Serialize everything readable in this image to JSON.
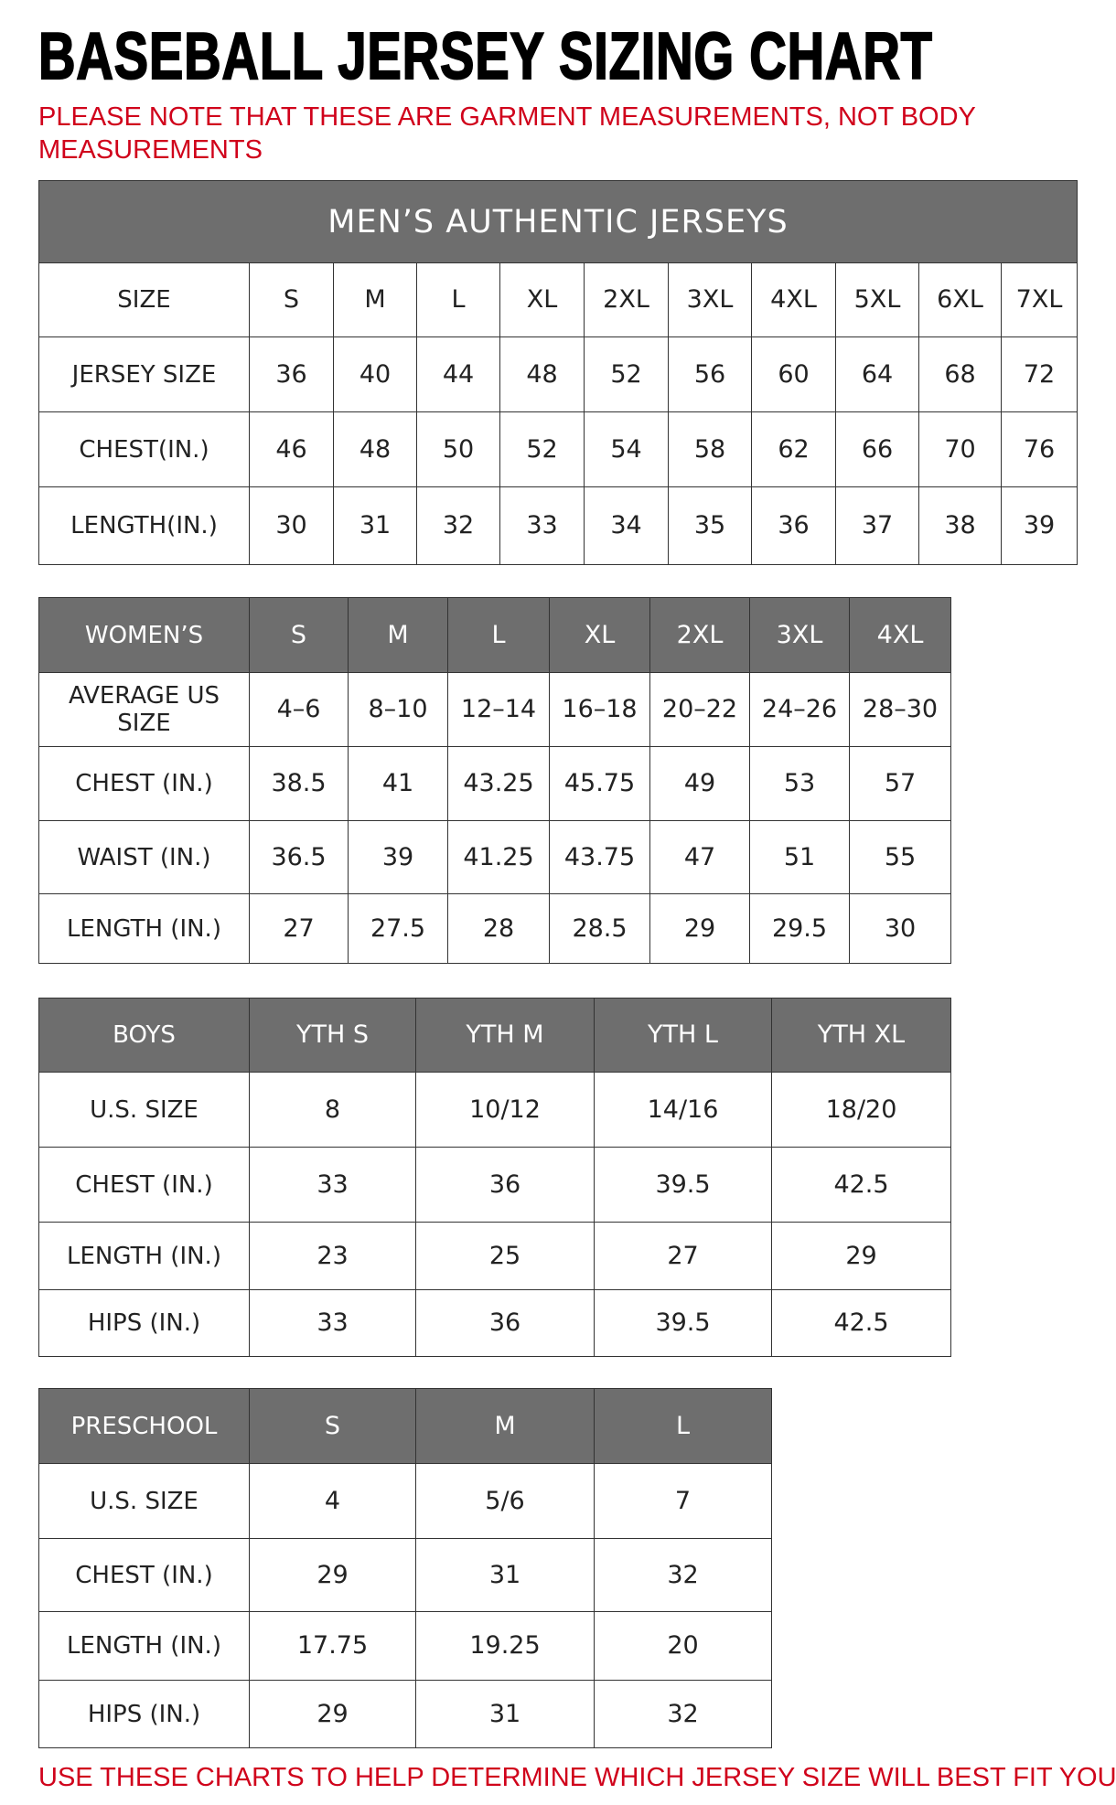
{
  "title": "BASEBALL JERSEY SIZING CHART",
  "note": "PLEASE NOTE THAT THESE ARE GARMENT MEASUREMENTS, NOT BODY MEASUREMENTS",
  "footer_note": "USE THESE CHARTS TO HELP DETERMINE WHICH JERSEY SIZE WILL BEST FIT YOU.",
  "colors": {
    "header_gray": "#6e6e6e",
    "note_red": "#d0021b"
  },
  "tables": [
    {
      "id": "mens",
      "caption": "MEN’S AUTHENTIC JERSEYS",
      "header_gray": false,
      "rows": [
        [
          "SIZE",
          "S",
          "M",
          "L",
          "XL",
          "2XL",
          "3XL",
          "4XL",
          "5XL",
          "6XL",
          "7XL"
        ],
        [
          "JERSEY SIZE",
          "36",
          "40",
          "44",
          "48",
          "52",
          "56",
          "60",
          "64",
          "68",
          "72"
        ],
        [
          "CHEST(IN.)",
          "46",
          "48",
          "50",
          "52",
          "54",
          "58",
          "62",
          "66",
          "70",
          "76"
        ],
        [
          "LENGTH(IN.)",
          "30",
          "31",
          "32",
          "33",
          "34",
          "35",
          "36",
          "37",
          "38",
          "39"
        ]
      ]
    },
    {
      "id": "womens",
      "header_gray": true,
      "rows": [
        [
          "WOMEN’S",
          "S",
          "M",
          "L",
          "XL",
          "2XL",
          "3XL",
          "4XL"
        ],
        [
          "AVERAGE US SIZE",
          "4–6",
          "8–10",
          "12–14",
          "16–18",
          "20–22",
          "24–26",
          "28–30"
        ],
        [
          "CHEST (IN.)",
          "38.5",
          "41",
          "43.25",
          "45.75",
          "49",
          "53",
          "57"
        ],
        [
          "WAIST (IN.)",
          "36.5",
          "39",
          "41.25",
          "43.75",
          "47",
          "51",
          "55"
        ],
        [
          "LENGTH (IN.)",
          "27",
          "27.5",
          "28",
          "28.5",
          "29",
          "29.5",
          "30"
        ]
      ]
    },
    {
      "id": "boys",
      "header_gray": true,
      "rows": [
        [
          "BOYS",
          "YTH S",
          "YTH M",
          "YTH L",
          "YTH XL"
        ],
        [
          "U.S. SIZE",
          "8",
          "10/12",
          "14/16",
          "18/20"
        ],
        [
          "CHEST (IN.)",
          "33",
          "36",
          "39.5",
          "42.5"
        ],
        [
          "LENGTH (IN.)",
          "23",
          "25",
          "27",
          "29"
        ],
        [
          "HIPS (IN.)",
          "33",
          "36",
          "39.5",
          "42.5"
        ]
      ]
    },
    {
      "id": "preschool",
      "header_gray": true,
      "rows": [
        [
          "PRESCHOOL",
          "S",
          "M",
          "L"
        ],
        [
          "U.S. SIZE",
          "4",
          "5/6",
          "7"
        ],
        [
          "CHEST (IN.)",
          "29",
          "31",
          "32"
        ],
        [
          "LENGTH (IN.)",
          "17.75",
          "19.25",
          "20"
        ],
        [
          "HIPS (IN.)",
          "29",
          "31",
          "32"
        ]
      ]
    }
  ]
}
